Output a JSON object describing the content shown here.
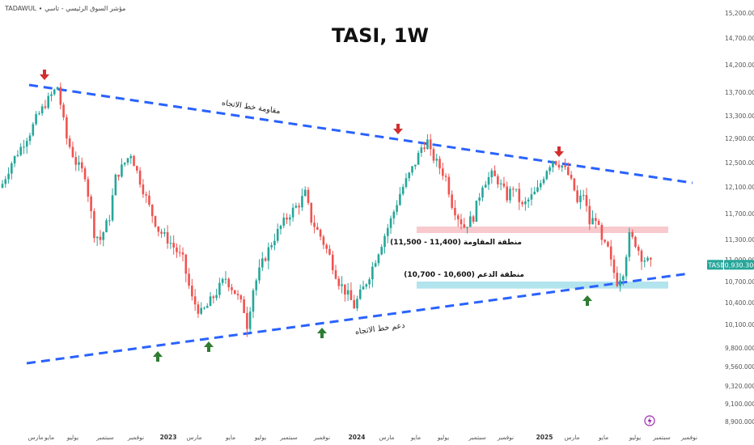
{
  "header": {
    "source_text": "TADAWUL ∙ مؤشر السوق الرئيسي - تاسي",
    "title": "TASI, 1W"
  },
  "price_tag": {
    "symbol": "TASI",
    "value": "10,930.300"
  },
  "annotations": {
    "resistance_trendline": "مقاومة خط الاتجاه",
    "support_trendline": "دعم خط الاتجاه",
    "resistance_zone": "منطقة المقاومة (11,400 - 11,500)",
    "support_zone": "منطقة الدعم (10,600 - 10,700)"
  },
  "colors": {
    "up": "#26a69a",
    "down": "#ef5350",
    "trendline": "#2962ff",
    "resistance_zone": "#f8c9cd",
    "support_zone": "#b2e4ee",
    "arrow_down": "#d32f2f",
    "arrow_up": "#2e7d32",
    "price_tag": "#26a69a"
  },
  "chart_data": {
    "type": "candlestick",
    "symbol": "TASI",
    "timeframe": "1W",
    "y_axis": {
      "ylim": [
        8900,
        15200
      ],
      "ticks": [
        "15,200.000",
        "14,700.000",
        "14,200.000",
        "13,700.000",
        "13,300.000",
        "12,900.000",
        "12,500.000",
        "12,100.000",
        "11,700.000",
        "11,300.000",
        "11,000.000",
        "10,700.000",
        "10,400.000",
        "10,100.000",
        "9,800.000",
        "9,560.000",
        "9,320.000",
        "9,100.000",
        "8,900.000"
      ]
    },
    "x_axis": {
      "ticks": [
        "مارس",
        "مايو",
        "يوليو",
        "سبتمبر",
        "نوفمبر",
        "2023",
        "مارس",
        "مايو",
        "يوليو",
        "سبتمبر",
        "نوفمبر",
        "2024",
        "مارس",
        "مايو",
        "يوليو",
        "سبتمبر",
        "نوفمبر",
        "2025",
        "مارس",
        "مايو",
        "يوليو",
        "سبتمبر",
        "نوفمبر"
      ],
      "year_ticks": [
        "2023",
        "2024",
        "2025"
      ]
    },
    "last_price": 10930.3,
    "weekly_close_path": [
      [
        0,
        12150
      ],
      [
        3,
        12500
      ],
      [
        6,
        12750
      ],
      [
        9,
        13000
      ],
      [
        11,
        13250
      ],
      [
        14,
        13500
      ],
      [
        16,
        13650
      ],
      [
        18,
        13800
      ],
      [
        21,
        12900
      ],
      [
        24,
        12500
      ],
      [
        27,
        12300
      ],
      [
        30,
        11400
      ],
      [
        32,
        11300
      ],
      [
        35,
        11650
      ],
      [
        37,
        12250
      ],
      [
        40,
        12500
      ],
      [
        42,
        12650
      ],
      [
        45,
        12200
      ],
      [
        48,
        11800
      ],
      [
        51,
        11450
      ],
      [
        55,
        11250
      ],
      [
        59,
        11000
      ],
      [
        62,
        10450
      ],
      [
        65,
        10250
      ],
      [
        67,
        10350
      ],
      [
        70,
        10550
      ],
      [
        73,
        10750
      ],
      [
        76,
        10550
      ],
      [
        79,
        10300
      ],
      [
        80,
        10100
      ],
      [
        82,
        10600
      ],
      [
        85,
        10950
      ],
      [
        88,
        11250
      ],
      [
        91,
        11500
      ],
      [
        94,
        11700
      ],
      [
        97,
        11850
      ],
      [
        99,
        12000
      ],
      [
        101,
        11600
      ],
      [
        104,
        11350
      ],
      [
        107,
        11050
      ],
      [
        110,
        10700
      ],
      [
        113,
        10500
      ],
      [
        115,
        10350
      ],
      [
        118,
        10600
      ],
      [
        121,
        10900
      ],
      [
        124,
        11250
      ],
      [
        127,
        11600
      ],
      [
        130,
        12000
      ],
      [
        133,
        12300
      ],
      [
        135,
        12500
      ],
      [
        137,
        12750
      ],
      [
        139,
        12850
      ],
      [
        140,
        12650
      ],
      [
        142,
        12500
      ],
      [
        145,
        12250
      ],
      [
        147,
        11850
      ],
      [
        149,
        11650
      ],
      [
        151,
        11500
      ],
      [
        154,
        11650
      ],
      [
        157,
        12150
      ],
      [
        160,
        12300
      ],
      [
        162,
        12200
      ],
      [
        165,
        11950
      ],
      [
        167,
        12100
      ],
      [
        170,
        11800
      ],
      [
        173,
        11950
      ],
      [
        175,
        12050
      ],
      [
        178,
        12400
      ],
      [
        180,
        12550
      ],
      [
        183,
        12450
      ],
      [
        185,
        12300
      ],
      [
        187,
        12050
      ],
      [
        188,
        11850
      ],
      [
        190,
        12000
      ],
      [
        192,
        11550
      ],
      [
        194,
        11650
      ],
      [
        196,
        11250
      ],
      [
        198,
        11150
      ],
      [
        199,
        10950
      ],
      [
        201,
        10700
      ],
      [
        203,
        10850
      ],
      [
        205,
        11350
      ],
      [
        207,
        11250
      ],
      [
        209,
        11050
      ],
      [
        212,
        10930
      ]
    ]
  }
}
